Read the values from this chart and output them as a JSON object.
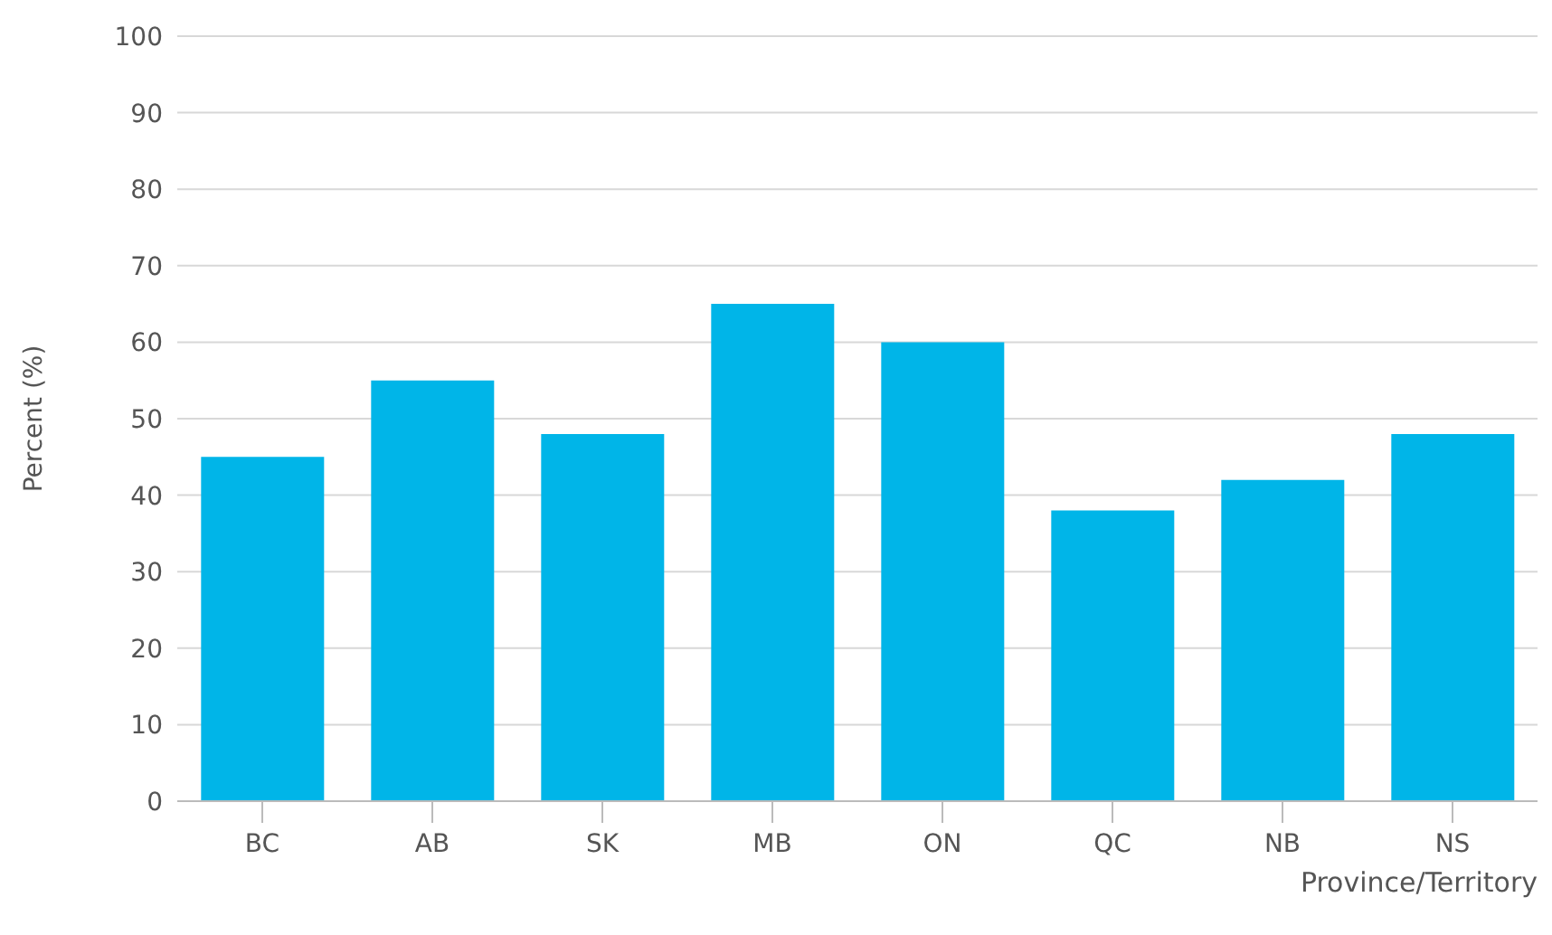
{
  "chart_data": {
    "type": "bar",
    "xlabel": "Province/Territory",
    "ylabel": "Percent (%)",
    "categories": [
      "BC",
      "AB",
      "SK",
      "MB",
      "ON",
      "QC",
      "NB",
      "NS"
    ],
    "values": [
      45,
      55,
      48,
      65,
      60,
      38,
      42,
      48
    ],
    "color": "#00b5e8",
    "ylim": [
      0,
      100
    ],
    "yticks": [
      0,
      10,
      20,
      30,
      40,
      50,
      60,
      70,
      80,
      90,
      100
    ],
    "grid": "y"
  }
}
